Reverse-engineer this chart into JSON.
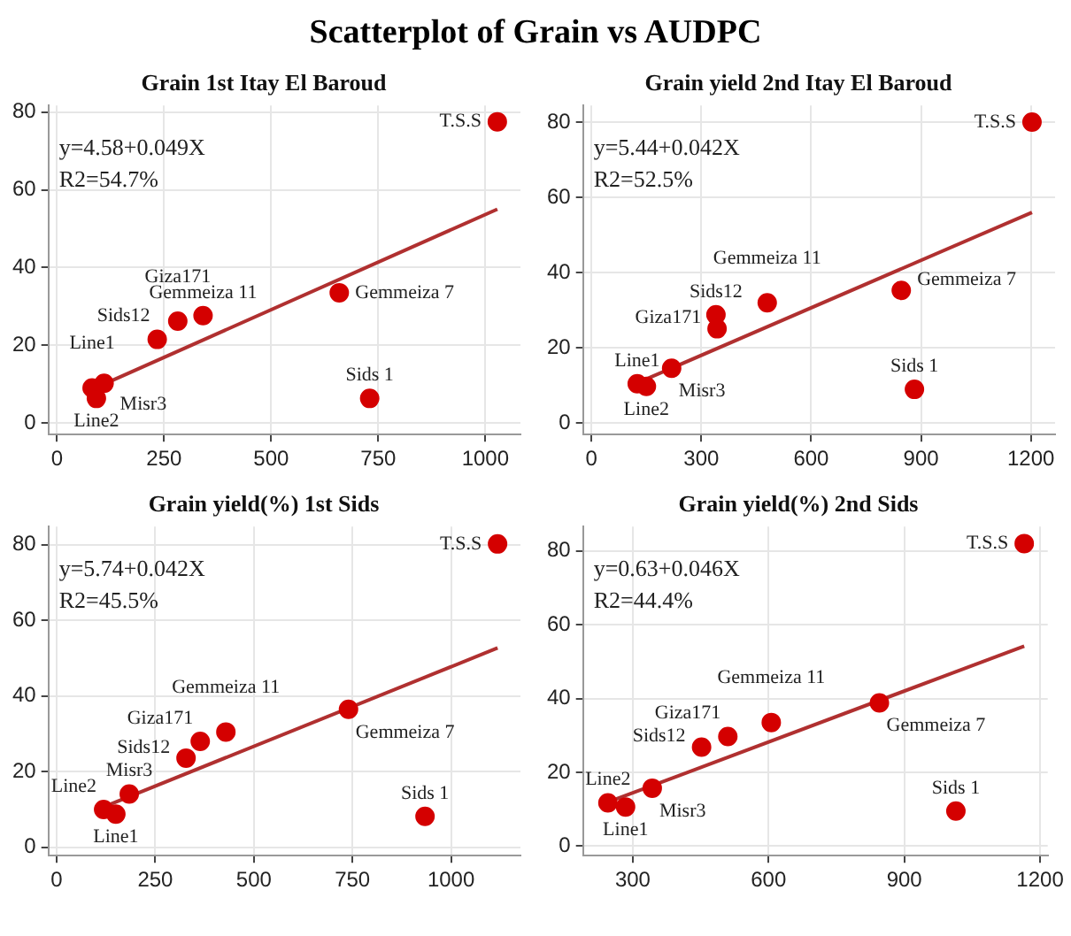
{
  "chart_data": [
    {
      "type": "other",
      "title": "Scatterplot of Grain vs AUDPC"
    },
    {
      "type": "scatter",
      "title": "Grain 1st Itay El Baroud",
      "xlim": [
        -20,
        1082
      ],
      "xticks": [
        0,
        250,
        500,
        750,
        1000
      ],
      "ylim": [
        -3,
        81.7
      ],
      "yticks": [
        0,
        20,
        40,
        60,
        80
      ],
      "grid": true,
      "legend": false,
      "series": [
        {
          "type": "scatter",
          "marker": "circle",
          "color": "#d40000",
          "x": [
            82,
            92,
            110,
            234,
            282,
            341,
            659,
            730,
            1028
          ],
          "values": [
            9,
            6.3,
            10.2,
            21.5,
            26.2,
            27.6,
            33.5,
            6.3,
            77.5
          ]
        },
        {
          "type": "line",
          "color": "#b03030",
          "x": [
            110,
            1028
          ],
          "values": [
            10,
            55
          ]
        }
      ],
      "annotations": [
        "y=4.58+0.049X",
        "R2=54.7%",
        {
          "text": "Line1",
          "x": 82,
          "y": 9
        },
        {
          "text": "Line2",
          "x": 92,
          "y": 6.3
        },
        {
          "text": "Misr3",
          "x": 110,
          "y": 10.2
        },
        {
          "text": "Sids12",
          "x": 234,
          "y": 21.5
        },
        {
          "text": "Giza171",
          "x": 282,
          "y": 26.2
        },
        {
          "text": "Gemmeiza 11",
          "x": 341,
          "y": 27.6
        },
        {
          "text": "Gemmeiza 7",
          "x": 659,
          "y": 33.5
        },
        {
          "text": "Sids 1",
          "x": 730,
          "y": 6.3
        },
        {
          "text": "T.S.S",
          "x": 1028,
          "y": 77.5
        }
      ]
    },
    {
      "type": "scatter",
      "title": "Grain yield 2nd Itay El Baroud",
      "xlim": [
        -23,
        1266
      ],
      "xticks": [
        0,
        300,
        600,
        900,
        1200
      ],
      "ylim": [
        -3,
        84.4
      ],
      "yticks": [
        0,
        20,
        40,
        60,
        80
      ],
      "grid": true,
      "legend": false,
      "series": [
        {
          "type": "scatter",
          "marker": "circle",
          "color": "#d40000",
          "x": [
            125,
            150,
            219,
            340,
            343,
            480,
            846,
            882,
            1203
          ],
          "values": [
            10.5,
            9.8,
            14.6,
            28.8,
            25.1,
            32,
            35.3,
            9,
            80
          ]
        },
        {
          "type": "line",
          "color": "#b03030",
          "x": [
            125,
            1203
          ],
          "values": [
            10.7,
            56
          ]
        }
      ],
      "annotations": [
        "y=5.44+0.042X",
        "R2=52.5%",
        {
          "text": "Line1",
          "x": 125,
          "y": 10.5
        },
        {
          "text": "Line2",
          "x": 150,
          "y": 9.8
        },
        {
          "text": "Misr3",
          "x": 219,
          "y": 14.6
        },
        {
          "text": "Sids12",
          "x": 340,
          "y": 28.8
        },
        {
          "text": "Giza171",
          "x": 343,
          "y": 25.1
        },
        {
          "text": "Gemmeiza 11",
          "x": 480,
          "y": 32
        },
        {
          "text": "Gemmeiza 7",
          "x": 846,
          "y": 35.3
        },
        {
          "text": "Sids 1",
          "x": 882,
          "y": 9
        },
        {
          "text": "T.S.S",
          "x": 1203,
          "y": 80
        }
      ]
    },
    {
      "type": "scatter",
      "title": "Grain yield(%) 1st Sids",
      "xlim": [
        -21,
        1176
      ],
      "xticks": [
        0,
        250,
        500,
        750,
        1000
      ],
      "ylim": [
        -2.2,
        84.8
      ],
      "yticks": [
        0,
        20,
        40,
        60,
        80
      ],
      "grid": true,
      "legend": false,
      "series": [
        {
          "type": "scatter",
          "marker": "circle",
          "color": "#d40000",
          "x": [
            119,
            150,
            184,
            328,
            364,
            429,
            740,
            934,
            1118
          ],
          "values": [
            10,
            8.8,
            14.1,
            23.6,
            28,
            30.5,
            36.5,
            8.2,
            80.2
          ]
        },
        {
          "type": "line",
          "color": "#b03030",
          "x": [
            119,
            1118
          ],
          "values": [
            10.7,
            52.7
          ]
        }
      ],
      "annotations": [
        "y=5.74+0.042X",
        "R2=45.5%",
        {
          "text": "Line2",
          "x": 119,
          "y": 10
        },
        {
          "text": "Line1",
          "x": 150,
          "y": 8.8
        },
        {
          "text": "Misr3",
          "x": 184,
          "y": 14.1
        },
        {
          "text": "Sids12",
          "x": 328,
          "y": 23.6
        },
        {
          "text": "Giza171",
          "x": 364,
          "y": 28
        },
        {
          "text": "Gemmeiza 11",
          "x": 429,
          "y": 30.5
        },
        {
          "text": "Gemmeiza 7",
          "x": 740,
          "y": 36.5
        },
        {
          "text": "Sids 1",
          "x": 934,
          "y": 8.2
        },
        {
          "text": "T.S.S",
          "x": 1118,
          "y": 80.2
        }
      ]
    },
    {
      "type": "scatter",
      "title": "Grain yield(%) 2nd Sids",
      "xlim": [
        190,
        1217
      ],
      "xticks": [
        300,
        600,
        900,
        1200
      ],
      "ylim": [
        -2.6,
        86.6
      ],
      "yticks": [
        0,
        20,
        40,
        60,
        80
      ],
      "grid": true,
      "legend": false,
      "series": [
        {
          "type": "scatter",
          "marker": "circle",
          "color": "#d40000",
          "x": [
            245,
            284,
            343,
            452,
            510,
            606,
            845,
            1014,
            1165
          ],
          "values": [
            11.7,
            10.6,
            15.7,
            26.8,
            29.7,
            33.5,
            38.8,
            9.5,
            82
          ]
        },
        {
          "type": "line",
          "color": "#b03030",
          "x": [
            245,
            1165
          ],
          "values": [
            11.9,
            54.2
          ]
        }
      ],
      "annotations": [
        "y=0.63+0.046X",
        "R2=44.4%",
        {
          "text": "Line2",
          "x": 245,
          "y": 11.7
        },
        {
          "text": "Line1",
          "x": 284,
          "y": 10.6
        },
        {
          "text": "Misr3",
          "x": 343,
          "y": 15.7
        },
        {
          "text": "Sids12",
          "x": 452,
          "y": 26.8
        },
        {
          "text": "Giza171",
          "x": 510,
          "y": 29.7
        },
        {
          "text": "Gemmeiza 11",
          "x": 606,
          "y": 33.5
        },
        {
          "text": "Gemmeiza 7",
          "x": 845,
          "y": 38.8
        },
        {
          "text": "Sids 1",
          "x": 1014,
          "y": 9.5
        },
        {
          "text": "T.S.S",
          "x": 1165,
          "y": 82
        }
      ]
    }
  ]
}
